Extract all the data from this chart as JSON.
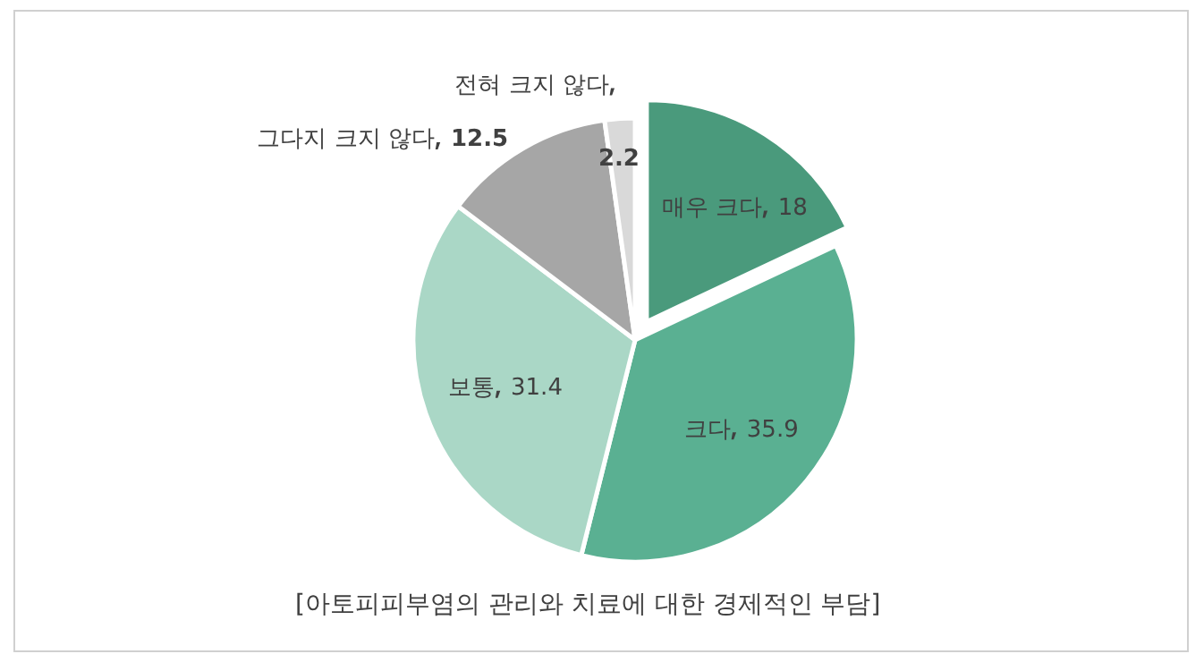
{
  "chart_data": {
    "type": "pie",
    "categories": [
      "매우 크다",
      "크다",
      "보통",
      "그다지 크지 않다",
      "전혀 크지 않다"
    ],
    "values": [
      18,
      35.9,
      31.4,
      12.5,
      2.2
    ],
    "colors": [
      "#4a9a7c",
      "#5ab092",
      "#aad7c6",
      "#a6a6a6",
      "#d9d9d9"
    ],
    "data_labels": true,
    "annotations": [
      "[아토피피부염의 관리와 치료에 대한 경제적인 부담]"
    ]
  }
}
